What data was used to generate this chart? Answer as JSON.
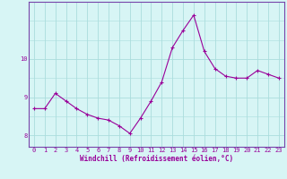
{
  "x": [
    0,
    1,
    2,
    3,
    4,
    5,
    6,
    7,
    8,
    9,
    10,
    11,
    12,
    13,
    14,
    15,
    16,
    17,
    18,
    19,
    20,
    21,
    22,
    23
  ],
  "y": [
    8.7,
    8.7,
    9.1,
    8.9,
    8.7,
    8.55,
    8.45,
    8.4,
    8.25,
    8.05,
    8.45,
    8.9,
    9.4,
    10.3,
    10.75,
    11.15,
    10.2,
    9.75,
    9.55,
    9.5,
    9.5,
    9.7,
    9.6,
    9.5
  ],
  "line_color": "#990099",
  "marker": "+",
  "markersize": 3.0,
  "linewidth": 0.8,
  "xlabel": "Windchill (Refroidissement éolien,°C)",
  "xlabel_fontsize": 5.5,
  "ylim": [
    7.7,
    11.5
  ],
  "yticks": [
    8,
    9,
    10
  ],
  "xtick_labels": [
    "0",
    "1",
    "2",
    "3",
    "4",
    "5",
    "6",
    "7",
    "8",
    "9",
    "10",
    "11",
    "12",
    "13",
    "14",
    "15",
    "16",
    "17",
    "18",
    "19",
    "20",
    "21",
    "22",
    "23"
  ],
  "tick_fontsize": 5.0,
  "grid_color": "#aadddd",
  "bg_color": "#d7f5f5",
  "border_color": "#7744aa",
  "spine_color": "#7744aa"
}
